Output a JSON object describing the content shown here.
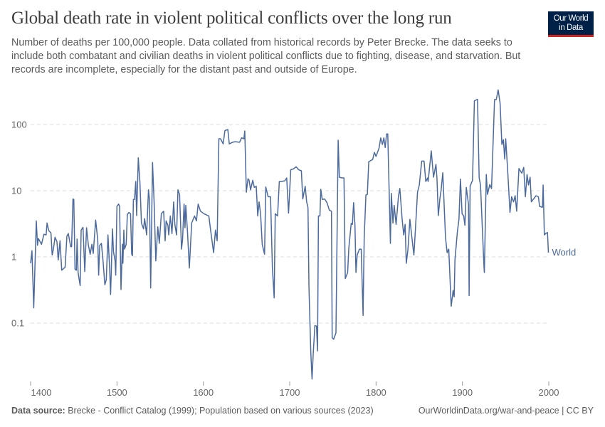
{
  "header": {
    "title": "Global death rate in violent political conflicts over the long run",
    "subtitle": "Number of deaths per 100,000 people. Data collated from historical records by Peter Brecke. The data seeks to include both combatant and civilian deaths in violent political conflicts due to fighting, disease, and starvation. But records are incomplete, especially for the distant past and outside of Europe.",
    "logo_line1": "Our World",
    "logo_line2": "in Data"
  },
  "footer": {
    "source_label": "Data source:",
    "source_text": "Brecke - Conflict Catalog (1999); Population based on various sources (2023)",
    "link": "OurWorldinData.org/war-and-peace | CC BY"
  },
  "colors": {
    "line": "#4c6a9c",
    "grid": "#dddddd",
    "logo_bg": "#002147",
    "logo_accent": "#ce261e"
  },
  "chart_data": {
    "type": "line",
    "title": "Global death rate in violent political conflicts over the long run",
    "xlabel": "",
    "ylabel": "Number of deaths per 100,000 people",
    "yscale": "log",
    "xlim": [
      1400,
      2000
    ],
    "ylim": [
      0.0135,
      340
    ],
    "x_ticks": [
      1400,
      1500,
      1600,
      1700,
      1800,
      1900,
      2000
    ],
    "x_tick_labels": [
      "1400",
      "1500",
      "1600",
      "1700",
      "1800",
      "1900",
      "2000"
    ],
    "y_ticks": [
      0.1,
      1,
      10,
      100
    ],
    "y_tick_labels": [
      "0.1",
      "1",
      "10",
      "100"
    ],
    "grid": "horizontal dashed",
    "legend": "line-end label",
    "series": [
      {
        "name": "World",
        "points": [
          [
            1400,
            0.8
          ],
          [
            1401.6,
            1.24
          ],
          [
            1403.6,
            0.17
          ],
          [
            1406.6,
            3.5
          ],
          [
            1408,
            1.5
          ],
          [
            1409,
            1.9
          ],
          [
            1412.6,
            1.55
          ],
          [
            1415.4,
            2.2
          ],
          [
            1418,
            2.15
          ],
          [
            1419,
            3.25
          ],
          [
            1421,
            2.5
          ],
          [
            1423.6,
            2.3
          ],
          [
            1425,
            1.07
          ],
          [
            1426.4,
            1.3
          ],
          [
            1428.3,
            1.98
          ],
          [
            1430.5,
            1.7
          ],
          [
            1432,
            0.9
          ],
          [
            1434,
            1.75
          ],
          [
            1436,
            0.63
          ],
          [
            1440,
            0.7
          ],
          [
            1442,
            2.07
          ],
          [
            1443.7,
            2.25
          ],
          [
            1446.4,
            1.43
          ],
          [
            1447.5,
            1.43
          ],
          [
            1449,
            7.5
          ],
          [
            1450,
            7.4
          ],
          [
            1451.4,
            0.65
          ],
          [
            1453,
            0.63
          ],
          [
            1453.8,
            1.86
          ],
          [
            1455,
            0.58
          ],
          [
            1457.4,
            0.37
          ],
          [
            1458.5,
            2.54
          ],
          [
            1460.7,
            2.8
          ],
          [
            1462.7,
            0.6
          ],
          [
            1464.8,
            2.76
          ],
          [
            1466.8,
            1.52
          ],
          [
            1469,
            1.1
          ],
          [
            1471,
            1.55
          ],
          [
            1472.5,
            1.13
          ],
          [
            1475.3,
            3.6
          ],
          [
            1477.7,
            1.83
          ],
          [
            1478.8,
            0.53
          ],
          [
            1480,
            1.49
          ],
          [
            1482,
            1.6
          ],
          [
            1484,
            0.83
          ],
          [
            1486,
            0.38
          ],
          [
            1487.6,
            0.45
          ],
          [
            1489.6,
            2.15
          ],
          [
            1491.5,
            0.68
          ],
          [
            1492.6,
            0.27
          ],
          [
            1494.8,
            2.65
          ],
          [
            1495.9,
            1.21
          ],
          [
            1497.8,
            0.87
          ],
          [
            1498.6,
            0.53
          ],
          [
            1500,
            5.8
          ],
          [
            1501.9,
            6.3
          ],
          [
            1503,
            5.8
          ],
          [
            1504.7,
            0.32
          ],
          [
            1506.3,
            1.55
          ],
          [
            1506.9,
            0.8
          ],
          [
            1508,
            2.54
          ],
          [
            1508.8,
            1.31
          ],
          [
            1510.7,
            1.55
          ],
          [
            1512,
            4.35
          ],
          [
            1513.7,
            4.7
          ],
          [
            1515.7,
            4.5
          ],
          [
            1517,
            1.11
          ],
          [
            1517.9,
            1.04
          ],
          [
            1519,
            7.4
          ],
          [
            1520.3,
            7.4
          ],
          [
            1521.7,
            13.8
          ],
          [
            1522.8,
            4.2
          ],
          [
            1524.7,
            31.4
          ],
          [
            1526.6,
            13.2
          ],
          [
            1528.3,
            3.25
          ],
          [
            1530.8,
            2.65
          ],
          [
            1532,
            3.8
          ],
          [
            1534.3,
            2.15
          ],
          [
            1536.5,
            10.3
          ],
          [
            1537.6,
            7.4
          ],
          [
            1539,
            0.34
          ],
          [
            1541.2,
            26.7
          ],
          [
            1543,
            6.8
          ],
          [
            1545,
            0.87
          ],
          [
            1547.3,
            2.85
          ],
          [
            1549,
            1.6
          ],
          [
            1551.4,
            4.5
          ],
          [
            1554,
            4.9
          ],
          [
            1555.8,
            1.75
          ],
          [
            1556.9,
            3.5
          ],
          [
            1559,
            3.0
          ],
          [
            1560,
            2.15
          ],
          [
            1561.8,
            4.15
          ],
          [
            1563.7,
            2.25
          ],
          [
            1565.7,
            6.8
          ],
          [
            1567,
            3.1
          ],
          [
            1569,
            2.15
          ],
          [
            1570.6,
            10.3
          ],
          [
            1572.5,
            8.8
          ],
          [
            1574.7,
            1.31
          ],
          [
            1576,
            1.83
          ],
          [
            1577.7,
            6.3
          ],
          [
            1578.8,
            2.76
          ],
          [
            1579.7,
            6.0
          ],
          [
            1581.6,
            2.54
          ],
          [
            1583.8,
            0.68
          ],
          [
            1586.5,
            3.25
          ],
          [
            1589.8,
            4.15
          ],
          [
            1592,
            3.5
          ],
          [
            1594,
            6.3
          ],
          [
            1596.7,
            4.9
          ],
          [
            1600.8,
            4.5
          ],
          [
            1606.4,
            4.15
          ],
          [
            1608.6,
            2.44
          ],
          [
            1611.9,
            1.16
          ],
          [
            1614,
            2.54
          ],
          [
            1616,
            1.75
          ],
          [
            1618,
            61
          ],
          [
            1620,
            61
          ],
          [
            1622.9,
            51
          ],
          [
            1625,
            81
          ],
          [
            1628.4,
            84
          ],
          [
            1630,
            51
          ],
          [
            1633.9,
            54
          ],
          [
            1636.6,
            55
          ],
          [
            1642,
            54
          ],
          [
            1644.3,
            63
          ],
          [
            1647,
            61
          ],
          [
            1648,
            80
          ],
          [
            1649.8,
            9.5
          ],
          [
            1651.7,
            15.2
          ],
          [
            1653,
            14.4
          ],
          [
            1654.7,
            10.3
          ],
          [
            1657.2,
            14.4
          ],
          [
            1659,
            11.2
          ],
          [
            1661.3,
            11.7
          ],
          [
            1663,
            4.15
          ],
          [
            1664.6,
            6.8
          ],
          [
            1666.3,
            4.5
          ],
          [
            1668.2,
            1.55
          ],
          [
            1670.9,
            1.1
          ],
          [
            1672.3,
            11.4
          ],
          [
            1675,
            8.1
          ],
          [
            1677.8,
            8.1
          ],
          [
            1680,
            0.68
          ],
          [
            1682,
            0.24
          ],
          [
            1683.3,
            4.5
          ],
          [
            1686,
            4.15
          ],
          [
            1688,
            13.8
          ],
          [
            1690.2,
            13.8
          ],
          [
            1694.3,
            14.1
          ],
          [
            1696.5,
            15.6
          ],
          [
            1698.7,
            4.6
          ],
          [
            1701.2,
            20.8
          ],
          [
            1704,
            21.3
          ],
          [
            1707.5,
            23
          ],
          [
            1710.2,
            20.8
          ],
          [
            1713.5,
            20
          ],
          [
            1715.2,
            7.5
          ],
          [
            1718,
            11.7
          ],
          [
            1719.6,
            6.8
          ],
          [
            1721.2,
            5.6
          ],
          [
            1722.3,
            0.34
          ],
          [
            1724.5,
            0.035
          ],
          [
            1725.9,
            0.0143
          ],
          [
            1727.3,
            0.035
          ],
          [
            1729.2,
            0.092
          ],
          [
            1731.1,
            0.09
          ],
          [
            1732.2,
            0.038
          ],
          [
            1733.3,
            4.15
          ],
          [
            1735,
            4.15
          ],
          [
            1736,
            10.5
          ],
          [
            1737.7,
            7.4
          ],
          [
            1740.5,
            7.5
          ],
          [
            1743.2,
            6.6
          ],
          [
            1745.9,
            5.1
          ],
          [
            1748.4,
            4.9
          ],
          [
            1749.2,
            0.06
          ],
          [
            1750.9,
            0.057
          ],
          [
            1753.6,
            0.071
          ],
          [
            1756.1,
            58
          ],
          [
            1757.5,
            16
          ],
          [
            1760.2,
            15.6
          ],
          [
            1762.9,
            15.6
          ],
          [
            1764.4,
            0.47
          ],
          [
            1767.1,
            0.58
          ],
          [
            1768.5,
            1.37
          ],
          [
            1771.2,
            3.2
          ],
          [
            1772.6,
            3.1
          ],
          [
            1774,
            6.6
          ],
          [
            1775.6,
            3.0
          ],
          [
            1776.7,
            0.58
          ],
          [
            1778.1,
            1.07
          ],
          [
            1780.8,
            1.31
          ],
          [
            1782.8,
            1.31
          ],
          [
            1785,
            0.13
          ],
          [
            1786.3,
            1.98
          ],
          [
            1788.3,
            8.6
          ],
          [
            1789.9,
            8.8
          ],
          [
            1791.6,
            27.5
          ],
          [
            1796,
            29.6
          ],
          [
            1798.1,
            38
          ],
          [
            1800,
            33
          ],
          [
            1803.4,
            44
          ],
          [
            1805.4,
            63
          ],
          [
            1807.3,
            50
          ],
          [
            1809,
            63
          ],
          [
            1810.6,
            45
          ],
          [
            1812.2,
            72
          ],
          [
            1813.6,
            72
          ],
          [
            1816.6,
            1.6
          ],
          [
            1817.7,
            9.1
          ],
          [
            1819.6,
            3.25
          ],
          [
            1821,
            6.0
          ],
          [
            1823.2,
            3.1
          ],
          [
            1826,
            8.4
          ],
          [
            1827.6,
            10.8
          ],
          [
            1830.1,
            3.8
          ],
          [
            1832,
            2.15
          ],
          [
            1833.7,
            3.1
          ],
          [
            1835,
            0.8
          ],
          [
            1837,
            1.31
          ],
          [
            1839.2,
            3.7
          ],
          [
            1841.9,
            1.75
          ],
          [
            1843.8,
            1.07
          ],
          [
            1845.2,
            2.15
          ],
          [
            1848,
            9.5
          ],
          [
            1850.1,
            12.2
          ],
          [
            1852.9,
            28
          ],
          [
            1855.6,
            28
          ],
          [
            1857.6,
            13.8
          ],
          [
            1859.8,
            15.6
          ],
          [
            1860.3,
            13.8
          ],
          [
            1863.9,
            40
          ],
          [
            1866.6,
            16
          ],
          [
            1869.4,
            25
          ],
          [
            1870.5,
            15.6
          ],
          [
            1872.1,
            4.2
          ],
          [
            1874,
            7.7
          ],
          [
            1875.4,
            10.3
          ],
          [
            1877.3,
            18.7
          ],
          [
            1880.4,
            1.98
          ],
          [
            1882.3,
            1.16
          ],
          [
            1884.2,
            1.31
          ],
          [
            1887,
            0.18
          ],
          [
            1889.2,
            0.31
          ],
          [
            1890.5,
            0.25
          ],
          [
            1891.4,
            0.9
          ],
          [
            1894.1,
            2.34
          ],
          [
            1896,
            3.7
          ],
          [
            1897.7,
            15
          ],
          [
            1899.6,
            4.5
          ],
          [
            1901.5,
            4.15
          ],
          [
            1902.9,
            3.0
          ],
          [
            1904.5,
            11.2
          ],
          [
            1907,
            6.3
          ],
          [
            1907.8,
            0.26
          ],
          [
            1908.9,
            11.7
          ],
          [
            1911.7,
            14.4
          ],
          [
            1913.9,
            228
          ],
          [
            1917.5,
            241
          ],
          [
            1919.4,
            15.6
          ],
          [
            1921,
            12.2
          ],
          [
            1924.9,
            0.74
          ],
          [
            1925.4,
            0.58
          ],
          [
            1927.6,
            17.6
          ],
          [
            1929,
            8.8
          ],
          [
            1931.7,
            12.4
          ],
          [
            1933.7,
            10.8
          ],
          [
            1937.2,
            238
          ],
          [
            1939.2,
            238
          ],
          [
            1941.4,
            334
          ],
          [
            1943.6,
            210
          ],
          [
            1945.7,
            50
          ],
          [
            1947.4,
            59
          ],
          [
            1949,
            30
          ],
          [
            1950.1,
            61
          ],
          [
            1952.3,
            21.7
          ],
          [
            1955.1,
            4.7
          ],
          [
            1957,
            8.1
          ],
          [
            1959.2,
            6.8
          ],
          [
            1961.1,
            8.4
          ],
          [
            1962.8,
            4.9
          ],
          [
            1965.5,
            21.7
          ],
          [
            1968.8,
            18.4
          ],
          [
            1971,
            22.5
          ],
          [
            1972.9,
            8.1
          ],
          [
            1974.9,
            17.6
          ],
          [
            1976.5,
            12.2
          ],
          [
            1978.4,
            16
          ],
          [
            1979.8,
            6.8
          ],
          [
            1985.3,
            8.4
          ],
          [
            1988,
            8.1
          ],
          [
            1989.4,
            5.8
          ],
          [
            1992.7,
            5.6
          ],
          [
            1993.5,
            12.2
          ],
          [
            1994.9,
            2.15
          ],
          [
            1996.3,
            2.25
          ],
          [
            1998.5,
            2.34
          ],
          [
            1999.6,
            1.16
          ]
        ]
      }
    ]
  }
}
